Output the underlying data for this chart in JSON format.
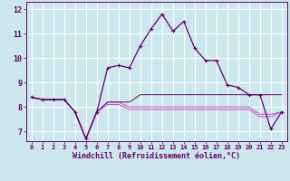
{
  "background_color": "#cce8ed",
  "grid_color": "#ffffff",
  "line_color_dark": "#660066",
  "line_color_mid": "#990099",
  "line_color_light": "#cc44cc",
  "x_ticks": [
    0,
    1,
    2,
    3,
    4,
    5,
    6,
    7,
    8,
    9,
    10,
    11,
    12,
    13,
    14,
    15,
    16,
    17,
    18,
    19,
    20,
    21,
    22,
    23
  ],
  "ylim": [
    6.6,
    12.3
  ],
  "yticks": [
    7,
    8,
    9,
    10,
    11,
    12
  ],
  "xlabel": "Windchill (Refroidissement éolien,°C)",
  "s1_y": [
    8.4,
    8.3,
    8.3,
    8.3,
    7.8,
    6.7,
    7.8,
    9.6,
    9.7,
    9.6,
    10.5,
    11.2,
    11.8,
    11.1,
    11.5,
    10.4,
    9.9,
    9.9,
    8.9,
    8.8,
    8.5,
    8.5,
    7.1,
    7.8
  ],
  "s2_y": [
    8.4,
    8.3,
    8.3,
    8.3,
    7.8,
    6.7,
    7.8,
    8.2,
    8.2,
    8.2,
    8.5,
    8.5,
    8.5,
    8.5,
    8.5,
    8.5,
    8.5,
    8.5,
    8.5,
    8.5,
    8.5,
    8.5,
    8.5,
    8.5
  ],
  "s3_y": [
    8.4,
    8.3,
    8.3,
    8.3,
    7.8,
    6.7,
    7.8,
    8.1,
    8.1,
    7.9,
    7.9,
    7.9,
    7.9,
    7.9,
    7.9,
    7.9,
    7.9,
    7.9,
    7.9,
    7.9,
    7.9,
    7.6,
    7.6,
    7.8
  ],
  "s4_y": [
    8.4,
    8.3,
    8.3,
    8.3,
    7.8,
    6.7,
    7.8,
    8.2,
    8.2,
    8.0,
    8.0,
    8.0,
    8.0,
    8.0,
    8.0,
    8.0,
    8.0,
    8.0,
    8.0,
    8.0,
    8.0,
    7.7,
    7.7,
    7.8
  ]
}
